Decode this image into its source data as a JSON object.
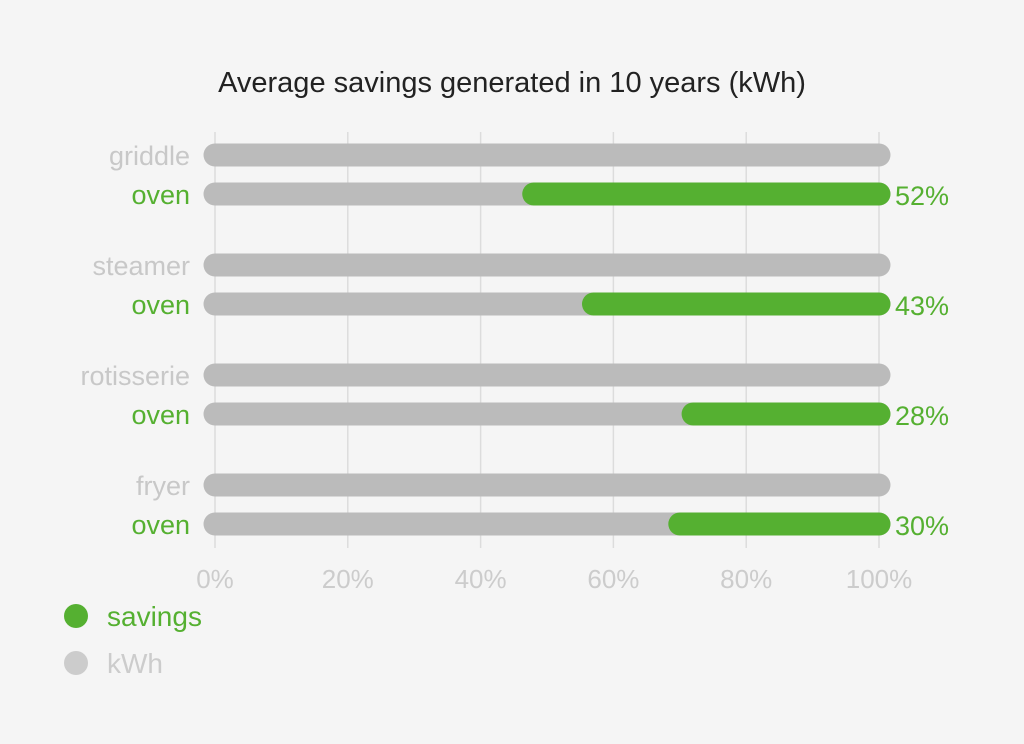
{
  "chart_data": {
    "type": "bar",
    "title": "Average savings generated in 10 years (kWh)",
    "xlabel": "",
    "ylabel": "",
    "xlim": [
      0,
      100
    ],
    "x_ticks": [
      "0%",
      "20%",
      "40%",
      "60%",
      "80%",
      "100%"
    ],
    "grid": true,
    "legend_placement": "bottom-left",
    "colors": {
      "savings": "#55b031",
      "kWh": "#bbbbbb",
      "category_label": "#c8c8c8",
      "tick_label": "#cccccc",
      "gridline": "#dcdcdc",
      "title": "#222222"
    },
    "groups": [
      {
        "category": "griddle",
        "comparison": "oven",
        "category_value": 100,
        "comparison_value": 100,
        "savings": 52,
        "savings_label": "52%"
      },
      {
        "category": "steamer",
        "comparison": "oven",
        "category_value": 100,
        "comparison_value": 100,
        "savings": 43,
        "savings_label": "43%"
      },
      {
        "category": "rotisserie",
        "comparison": "oven",
        "category_value": 100,
        "comparison_value": 100,
        "savings": 28,
        "savings_label": "28%"
      },
      {
        "category": "fryer",
        "comparison": "oven",
        "category_value": 100,
        "comparison_value": 100,
        "savings": 30,
        "savings_label": "30%"
      }
    ],
    "legend": [
      {
        "name": "savings",
        "color": "#55b031"
      },
      {
        "name": "kWh",
        "color": "#cccccc"
      }
    ]
  }
}
